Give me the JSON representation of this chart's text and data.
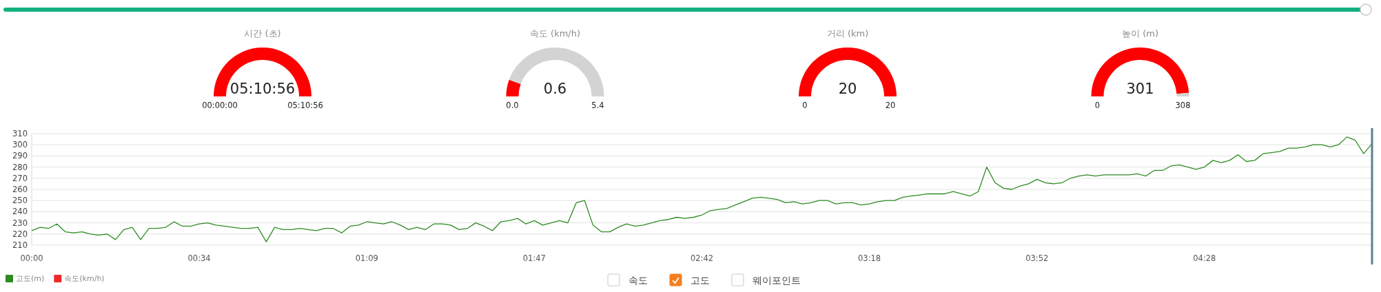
{
  "chart_data": [
    {
      "type": "pie",
      "title": "시간 (초)",
      "categories": [
        null
      ],
      "values": [
        100
      ],
      "colors": [
        "#ff0000"
      ],
      "annotations": [
        "05:10:56",
        "00:00:00",
        "05:10:56"
      ]
    },
    {
      "type": "donut",
      "title": "속도 (km/h)",
      "categories": [
        null,
        null
      ],
      "values": [
        11.1,
        88.9
      ],
      "colors": [
        "#ff0000",
        "#d3d3d3"
      ],
      "annotations": [
        "0.6",
        "0.0",
        "5.4"
      ]
    },
    {
      "type": "pie",
      "title": "거리 (km)",
      "categories": [
        null
      ],
      "values": [
        100
      ],
      "colors": [
        "#ff0000"
      ],
      "annotations": [
        "20",
        "0",
        "20"
      ]
    },
    {
      "type": "donut",
      "title": "높이 (m)",
      "categories": [
        null,
        null
      ],
      "values": [
        97.7,
        2.3
      ],
      "colors": [
        "#ff0000",
        "#d3d3d3"
      ],
      "annotations": [
        "301",
        "0",
        "308"
      ]
    },
    {
      "type": "line",
      "categories": [
        "00:00",
        null,
        null,
        null,
        null,
        null,
        null,
        null,
        null,
        null,
        null,
        null,
        null,
        null,
        null,
        null,
        null,
        null,
        null,
        null,
        "00:34",
        null,
        null,
        null,
        null,
        null,
        null,
        null,
        null,
        null,
        null,
        null,
        null,
        null,
        null,
        null,
        null,
        null,
        null,
        null,
        "01:09",
        null,
        null,
        null,
        null,
        null,
        null,
        null,
        null,
        null,
        null,
        null,
        null,
        null,
        null,
        null,
        null,
        null,
        null,
        null,
        "01:47",
        null,
        null,
        null,
        null,
        null,
        null,
        null,
        null,
        null,
        null,
        null,
        null,
        null,
        null,
        null,
        null,
        null,
        null,
        null,
        "02:42",
        null,
        null,
        null,
        null,
        null,
        null,
        null,
        null,
        null,
        null,
        null,
        null,
        null,
        null,
        null,
        null,
        null,
        null,
        null,
        "03:18",
        null,
        null,
        null,
        null,
        null,
        null,
        null,
        null,
        null,
        null,
        null,
        null,
        null,
        null,
        null,
        null,
        null,
        null,
        null,
        "03:52",
        null,
        null,
        null,
        null,
        null,
        null,
        null,
        null,
        null,
        null,
        null,
        null,
        null,
        null,
        null,
        null,
        null,
        null,
        null,
        "04:28",
        null,
        null,
        null,
        null,
        null,
        null,
        null,
        null,
        null,
        null,
        null,
        null,
        null,
        null,
        null,
        null,
        null,
        null,
        null,
        null
      ],
      "series": [
        {
          "name": "고도(m)",
          "color": "#2e8b22",
          "values": [
            223,
            226,
            225,
            229,
            222,
            221,
            222,
            220,
            219,
            220,
            215,
            224,
            226,
            215,
            225,
            225,
            226,
            231,
            227,
            227,
            229,
            230,
            228,
            227,
            226,
            225,
            225,
            226,
            213,
            226,
            224,
            224,
            225,
            224,
            223,
            225,
            225,
            221,
            227,
            228,
            231,
            230,
            229,
            231,
            228,
            224,
            226,
            224,
            229,
            229,
            228,
            224,
            225,
            230,
            227,
            223,
            231,
            232,
            234,
            229,
            232,
            228,
            230,
            232,
            230,
            248,
            250,
            228,
            222,
            222,
            226,
            229,
            227,
            228,
            230,
            232,
            233,
            235,
            234,
            235,
            237,
            241,
            242,
            243,
            246,
            249,
            252,
            253,
            252,
            251,
            248,
            249,
            247,
            248,
            250,
            250,
            247,
            248,
            248,
            246,
            247,
            249,
            250,
            250,
            253,
            254,
            255,
            256,
            256,
            256,
            258,
            256,
            254,
            258,
            280,
            266,
            261,
            260,
            263,
            265,
            269,
            266,
            265,
            266,
            270,
            272,
            273,
            272,
            273,
            273,
            273,
            273,
            274,
            272,
            277,
            277,
            281,
            282,
            280,
            278,
            280,
            286,
            284,
            286,
            291,
            285,
            286,
            292,
            293,
            294,
            297,
            297,
            298,
            300,
            300,
            298,
            300,
            307,
            304,
            292,
            301
          ]
        },
        {
          "name": "속도(km/h)",
          "color": "#ee2a2a",
          "values": [
            null,
            null,
            null,
            null,
            null,
            null,
            null,
            null,
            null,
            null,
            null,
            null,
            null,
            null,
            null,
            null,
            null,
            null,
            null,
            null,
            null,
            null,
            null,
            null,
            null,
            null,
            null,
            null,
            null,
            null,
            null,
            null,
            null,
            null,
            null,
            null,
            null,
            null,
            null,
            null,
            null,
            null,
            null,
            null,
            null,
            null,
            null,
            null,
            null,
            null,
            null,
            null,
            null,
            null,
            null,
            null,
            null,
            null,
            null,
            null,
            null,
            null,
            null,
            null,
            null,
            null,
            null,
            null,
            null,
            null,
            null,
            null,
            null,
            null,
            null,
            null,
            null,
            null,
            null,
            null,
            null,
            null,
            null,
            null,
            null,
            null,
            null,
            null,
            null,
            null,
            null,
            null,
            null,
            null,
            null,
            null,
            null,
            null,
            null,
            null,
            null,
            null,
            null,
            null,
            null,
            null,
            null,
            null,
            null,
            null,
            null,
            null,
            null,
            null,
            null,
            null,
            null,
            null,
            null,
            null,
            null,
            null,
            null,
            null,
            null,
            null,
            null,
            null,
            null,
            null,
            null,
            null,
            null,
            null,
            null,
            null,
            null,
            null,
            null,
            null,
            null,
            null,
            null,
            null,
            null,
            null,
            null,
            null,
            null,
            null,
            null,
            null,
            null,
            null,
            null,
            null,
            null,
            null,
            null,
            null,
            null
          ]
        }
      ],
      "ylim": [
        210,
        310
      ],
      "yticks": [
        210,
        220,
        230,
        240,
        250,
        260,
        270,
        280,
        290,
        300,
        310
      ],
      "grid": "y",
      "legend": "bottom left",
      "annotations": [
        "속도",
        "고도",
        "웨이포인트"
      ]
    }
  ]
}
